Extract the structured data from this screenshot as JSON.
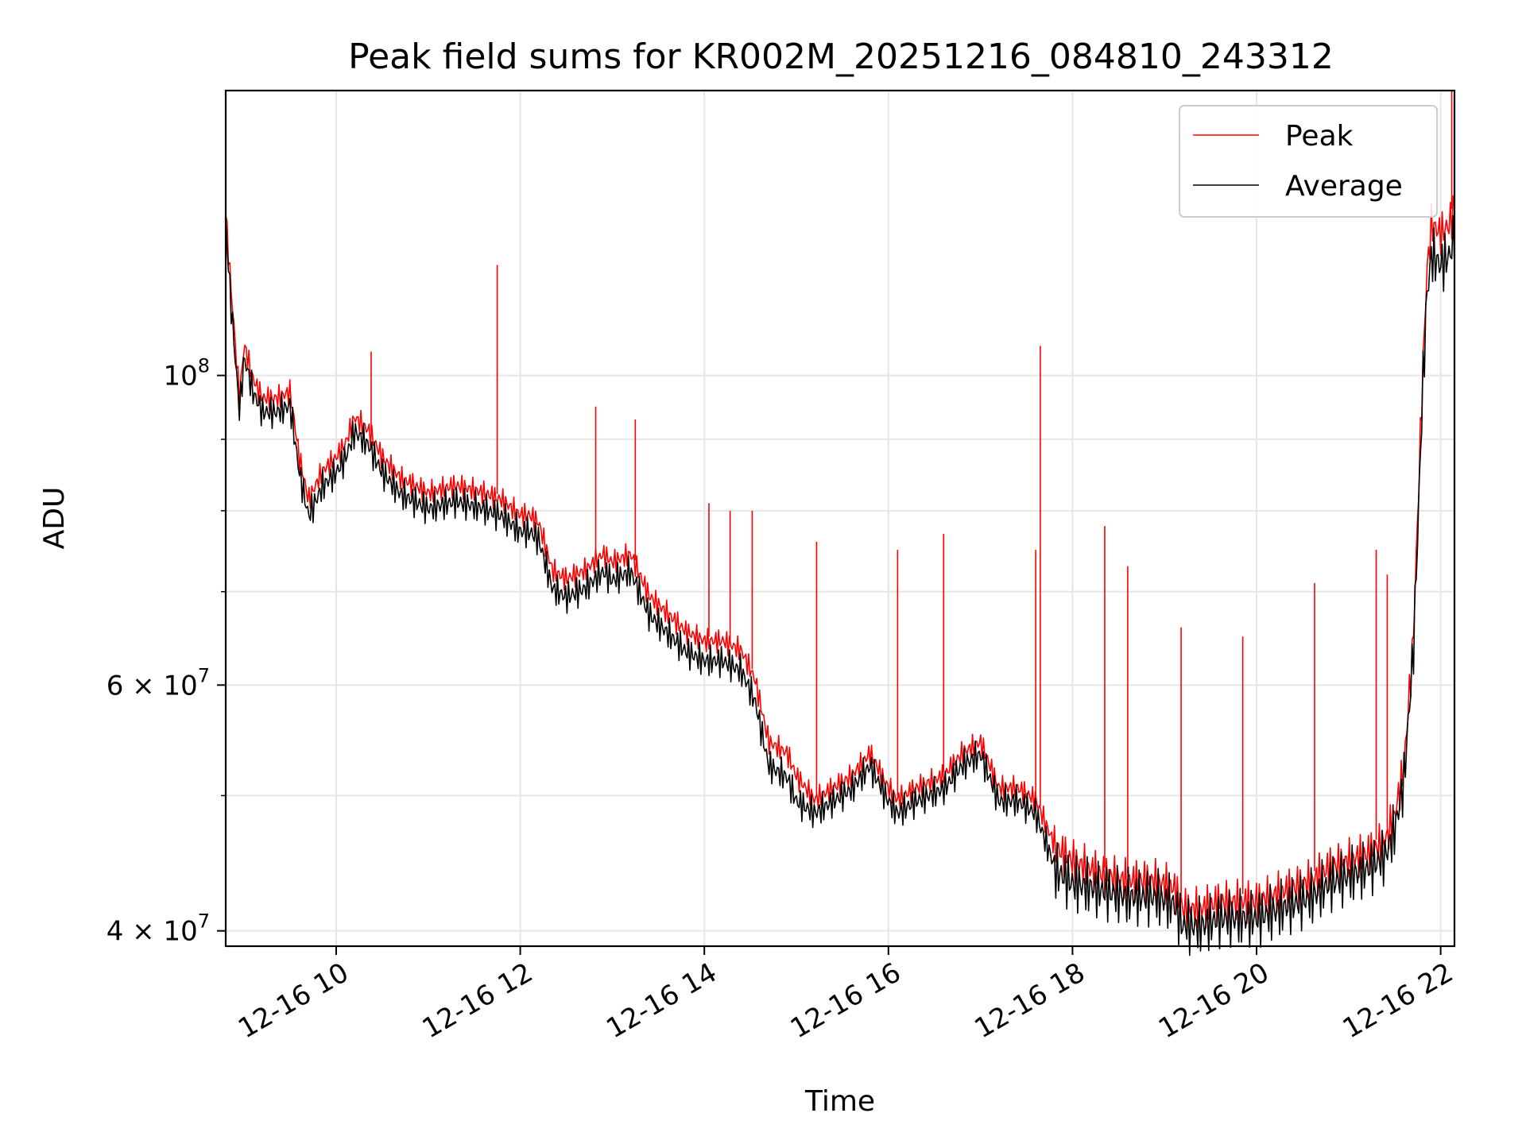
{
  "chart_data": {
    "type": "line",
    "title": "Peak field sums for KR002M_20251216_084810_243312",
    "xlabel": "Time",
    "ylabel": "ADU",
    "yscale": "log",
    "grid": true,
    "legend_position": "top-right",
    "xlim": [
      8.8,
      22.15
    ],
    "ylim": [
      39000000,
      160000000
    ],
    "x_ticks": [
      {
        "value": 10,
        "label": "12-16 10"
      },
      {
        "value": 12,
        "label": "12-16 12"
      },
      {
        "value": 14,
        "label": "12-16 14"
      },
      {
        "value": 16,
        "label": "12-16 16"
      },
      {
        "value": 18,
        "label": "12-16 18"
      },
      {
        "value": 20,
        "label": "12-16 20"
      },
      {
        "value": 22,
        "label": "12-16 22"
      }
    ],
    "y_ticks": [
      {
        "value": 40000000,
        "base": "4 × 10",
        "exp": "7"
      },
      {
        "value": 60000000,
        "base": "6 × 10",
        "exp": "7"
      },
      {
        "value": 100000000,
        "base": "10",
        "exp": "8"
      }
    ],
    "y_minor_ticks": [
      50000000,
      70000000,
      80000000,
      90000000
    ],
    "series": [
      {
        "name": "Peak",
        "color": "#ff0000",
        "x": [
          8.8,
          8.85,
          8.95,
          9.0,
          9.1,
          9.2,
          9.35,
          9.5,
          9.6,
          9.7,
          9.85,
          10.0,
          10.1,
          10.2,
          10.35,
          10.5,
          10.7,
          11.0,
          11.3,
          11.6,
          11.8,
          12.0,
          12.1,
          12.2,
          12.35,
          12.5,
          12.7,
          12.9,
          13.0,
          13.2,
          13.4,
          13.6,
          13.8,
          14.0,
          14.2,
          14.4,
          14.55,
          14.7,
          14.9,
          15.0,
          15.2,
          15.4,
          15.6,
          15.8,
          16.0,
          16.1,
          16.3,
          16.6,
          16.8,
          17.0,
          17.2,
          17.4,
          17.6,
          17.8,
          18.0,
          18.3,
          18.6,
          18.9,
          19.1,
          19.2,
          19.4,
          19.6,
          19.8,
          20.0,
          20.2,
          20.4,
          20.6,
          20.8,
          21.0,
          21.2,
          21.4,
          21.5,
          21.6,
          21.7,
          21.75,
          21.8,
          21.85,
          21.9,
          22.0,
          22.1,
          22.15
        ],
        "values": [
          132000000,
          118000000,
          97000000,
          106000000,
          100000000,
          97000000,
          97000000,
          98000000,
          88000000,
          82000000,
          86000000,
          88000000,
          90000000,
          94000000,
          92000000,
          88000000,
          85000000,
          83000000,
          84000000,
          83000000,
          82000000,
          80000000,
          80000000,
          79000000,
          73000000,
          72000000,
          73000000,
          75000000,
          74000000,
          75000000,
          70000000,
          68000000,
          66000000,
          65000000,
          65000000,
          64000000,
          61000000,
          55000000,
          54000000,
          52000000,
          50000000,
          51000000,
          52000000,
          54000000,
          51000000,
          50000000,
          51000000,
          52000000,
          54000000,
          55000000,
          51000000,
          51000000,
          50000000,
          46500000,
          45500000,
          44500000,
          44000000,
          44000000,
          43500000,
          42000000,
          42000000,
          42500000,
          42500000,
          42500000,
          43000000,
          43500000,
          44000000,
          45000000,
          45500000,
          46000000,
          47000000,
          49000000,
          53000000,
          65000000,
          80000000,
          100000000,
          120000000,
          130000000,
          128000000,
          130000000,
          134000000
        ],
        "spikes": [
          {
            "x": 11.75,
            "y": 120000000
          },
          {
            "x": 10.38,
            "y": 104000000
          },
          {
            "x": 12.82,
            "y": 95000000
          },
          {
            "x": 13.25,
            "y": 93000000
          },
          {
            "x": 14.05,
            "y": 81000000
          },
          {
            "x": 14.28,
            "y": 80000000
          },
          {
            "x": 14.52,
            "y": 80000000
          },
          {
            "x": 15.22,
            "y": 76000000
          },
          {
            "x": 16.1,
            "y": 75000000
          },
          {
            "x": 16.6,
            "y": 77000000
          },
          {
            "x": 17.65,
            "y": 105000000
          },
          {
            "x": 17.6,
            "y": 75000000
          },
          {
            "x": 18.35,
            "y": 78000000
          },
          {
            "x": 18.6,
            "y": 73000000
          },
          {
            "x": 19.18,
            "y": 66000000
          },
          {
            "x": 19.85,
            "y": 65000000
          },
          {
            "x": 20.63,
            "y": 71000000
          },
          {
            "x": 21.3,
            "y": 75000000
          },
          {
            "x": 21.42,
            "y": 72000000
          },
          {
            "x": 22.12,
            "y": 160000000
          }
        ]
      },
      {
        "name": "Average",
        "color": "#000000",
        "x": [
          8.8,
          8.85,
          8.95,
          9.0,
          9.1,
          9.2,
          9.35,
          9.5,
          9.6,
          9.7,
          9.85,
          10.0,
          10.1,
          10.2,
          10.35,
          10.5,
          10.7,
          11.0,
          11.3,
          11.6,
          11.8,
          12.0,
          12.1,
          12.2,
          12.35,
          12.5,
          12.7,
          12.9,
          13.0,
          13.2,
          13.4,
          13.6,
          13.8,
          14.0,
          14.2,
          14.4,
          14.55,
          14.7,
          14.9,
          15.0,
          15.2,
          15.4,
          15.6,
          15.8,
          16.0,
          16.1,
          16.3,
          16.6,
          16.8,
          17.0,
          17.2,
          17.4,
          17.6,
          17.8,
          18.0,
          18.3,
          18.6,
          18.9,
          19.1,
          19.2,
          19.4,
          19.6,
          19.8,
          20.0,
          20.2,
          20.4,
          20.6,
          20.8,
          21.0,
          21.2,
          21.4,
          21.5,
          21.6,
          21.7,
          21.75,
          21.8,
          21.85,
          21.9,
          22.0,
          22.1,
          22.15
        ],
        "values": [
          130000000,
          115000000,
          95000000,
          104000000,
          98000000,
          95000000,
          95000000,
          96000000,
          86000000,
          80000000,
          84000000,
          86000000,
          88000000,
          92000000,
          90000000,
          86000000,
          83000000,
          81000000,
          82000000,
          81000000,
          80000000,
          78000000,
          78000000,
          77000000,
          71000000,
          70000000,
          71000000,
          73000000,
          72000000,
          73000000,
          68000000,
          66000000,
          64000000,
          63000000,
          63000000,
          62000000,
          59000000,
          53000000,
          52000000,
          50000000,
          49000000,
          50000000,
          51000000,
          53000000,
          50000000,
          49000000,
          50000000,
          51000000,
          53000000,
          54000000,
          50000000,
          50000000,
          49000000,
          45000000,
          44000000,
          43500000,
          43000000,
          43000000,
          42500000,
          41000000,
          41000000,
          41500000,
          41500000,
          41500000,
          42000000,
          42500000,
          43000000,
          44000000,
          44500000,
          45000000,
          46000000,
          48000000,
          52000000,
          64000000,
          78000000,
          98000000,
          116000000,
          124000000,
          122000000,
          124000000,
          128000000
        ]
      }
    ]
  }
}
